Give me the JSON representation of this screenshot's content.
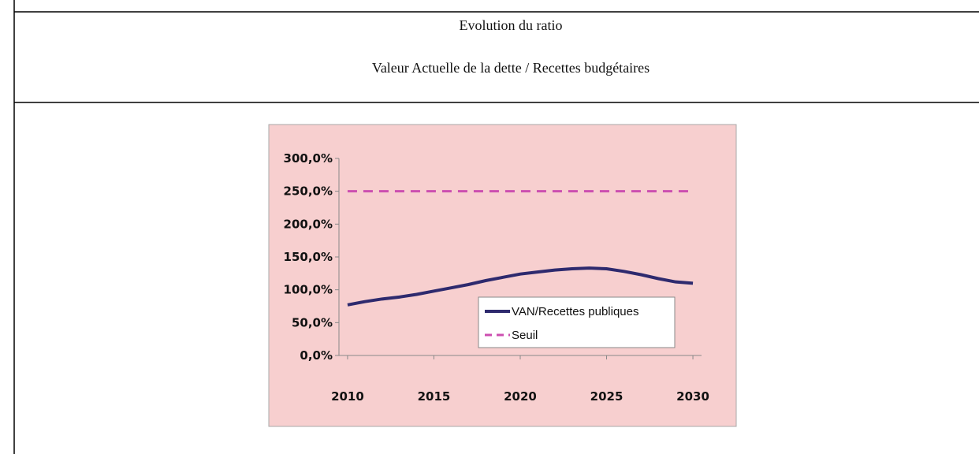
{
  "header": {
    "title": "Evolution du ratio",
    "subtitle": "Valeur Actuelle de la dette / Recettes budgétaires"
  },
  "chart_data": {
    "type": "line",
    "x": [
      2010,
      2011,
      2012,
      2013,
      2014,
      2015,
      2016,
      2017,
      2018,
      2019,
      2020,
      2021,
      2022,
      2023,
      2024,
      2025,
      2026,
      2027,
      2028,
      2029,
      2030
    ],
    "series": [
      {
        "name": "VAN/Recettes publiques",
        "color": "#2e2a6e",
        "dash": false,
        "values": [
          77,
          82,
          86,
          89,
          93,
          98,
          103,
          108,
          114,
          119,
          124,
          127,
          130,
          132,
          133,
          132,
          128,
          123,
          117,
          112,
          110
        ]
      },
      {
        "name": "Seuil",
        "color": "#cc4fb0",
        "dash": true,
        "values": [
          250,
          250,
          250,
          250,
          250,
          250,
          250,
          250,
          250,
          250,
          250,
          250,
          250,
          250,
          250,
          250,
          250,
          250,
          250,
          250,
          250
        ]
      }
    ],
    "xlim": [
      2009.5,
      2030.5
    ],
    "ylim": [
      0,
      300
    ],
    "xticks": [
      2010,
      2015,
      2020,
      2025,
      2030
    ],
    "yticks": [
      {
        "value": 0,
        "label": "0,0%"
      },
      {
        "value": 50,
        "label": "50,0%"
      },
      {
        "value": 100,
        "label": "100,0%"
      },
      {
        "value": 150,
        "label": "150,0%"
      },
      {
        "value": 200,
        "label": "200,0%"
      },
      {
        "value": 250,
        "label": "250,0%"
      },
      {
        "value": 300,
        "label": "300,0%"
      }
    ],
    "legend": "lower right"
  }
}
